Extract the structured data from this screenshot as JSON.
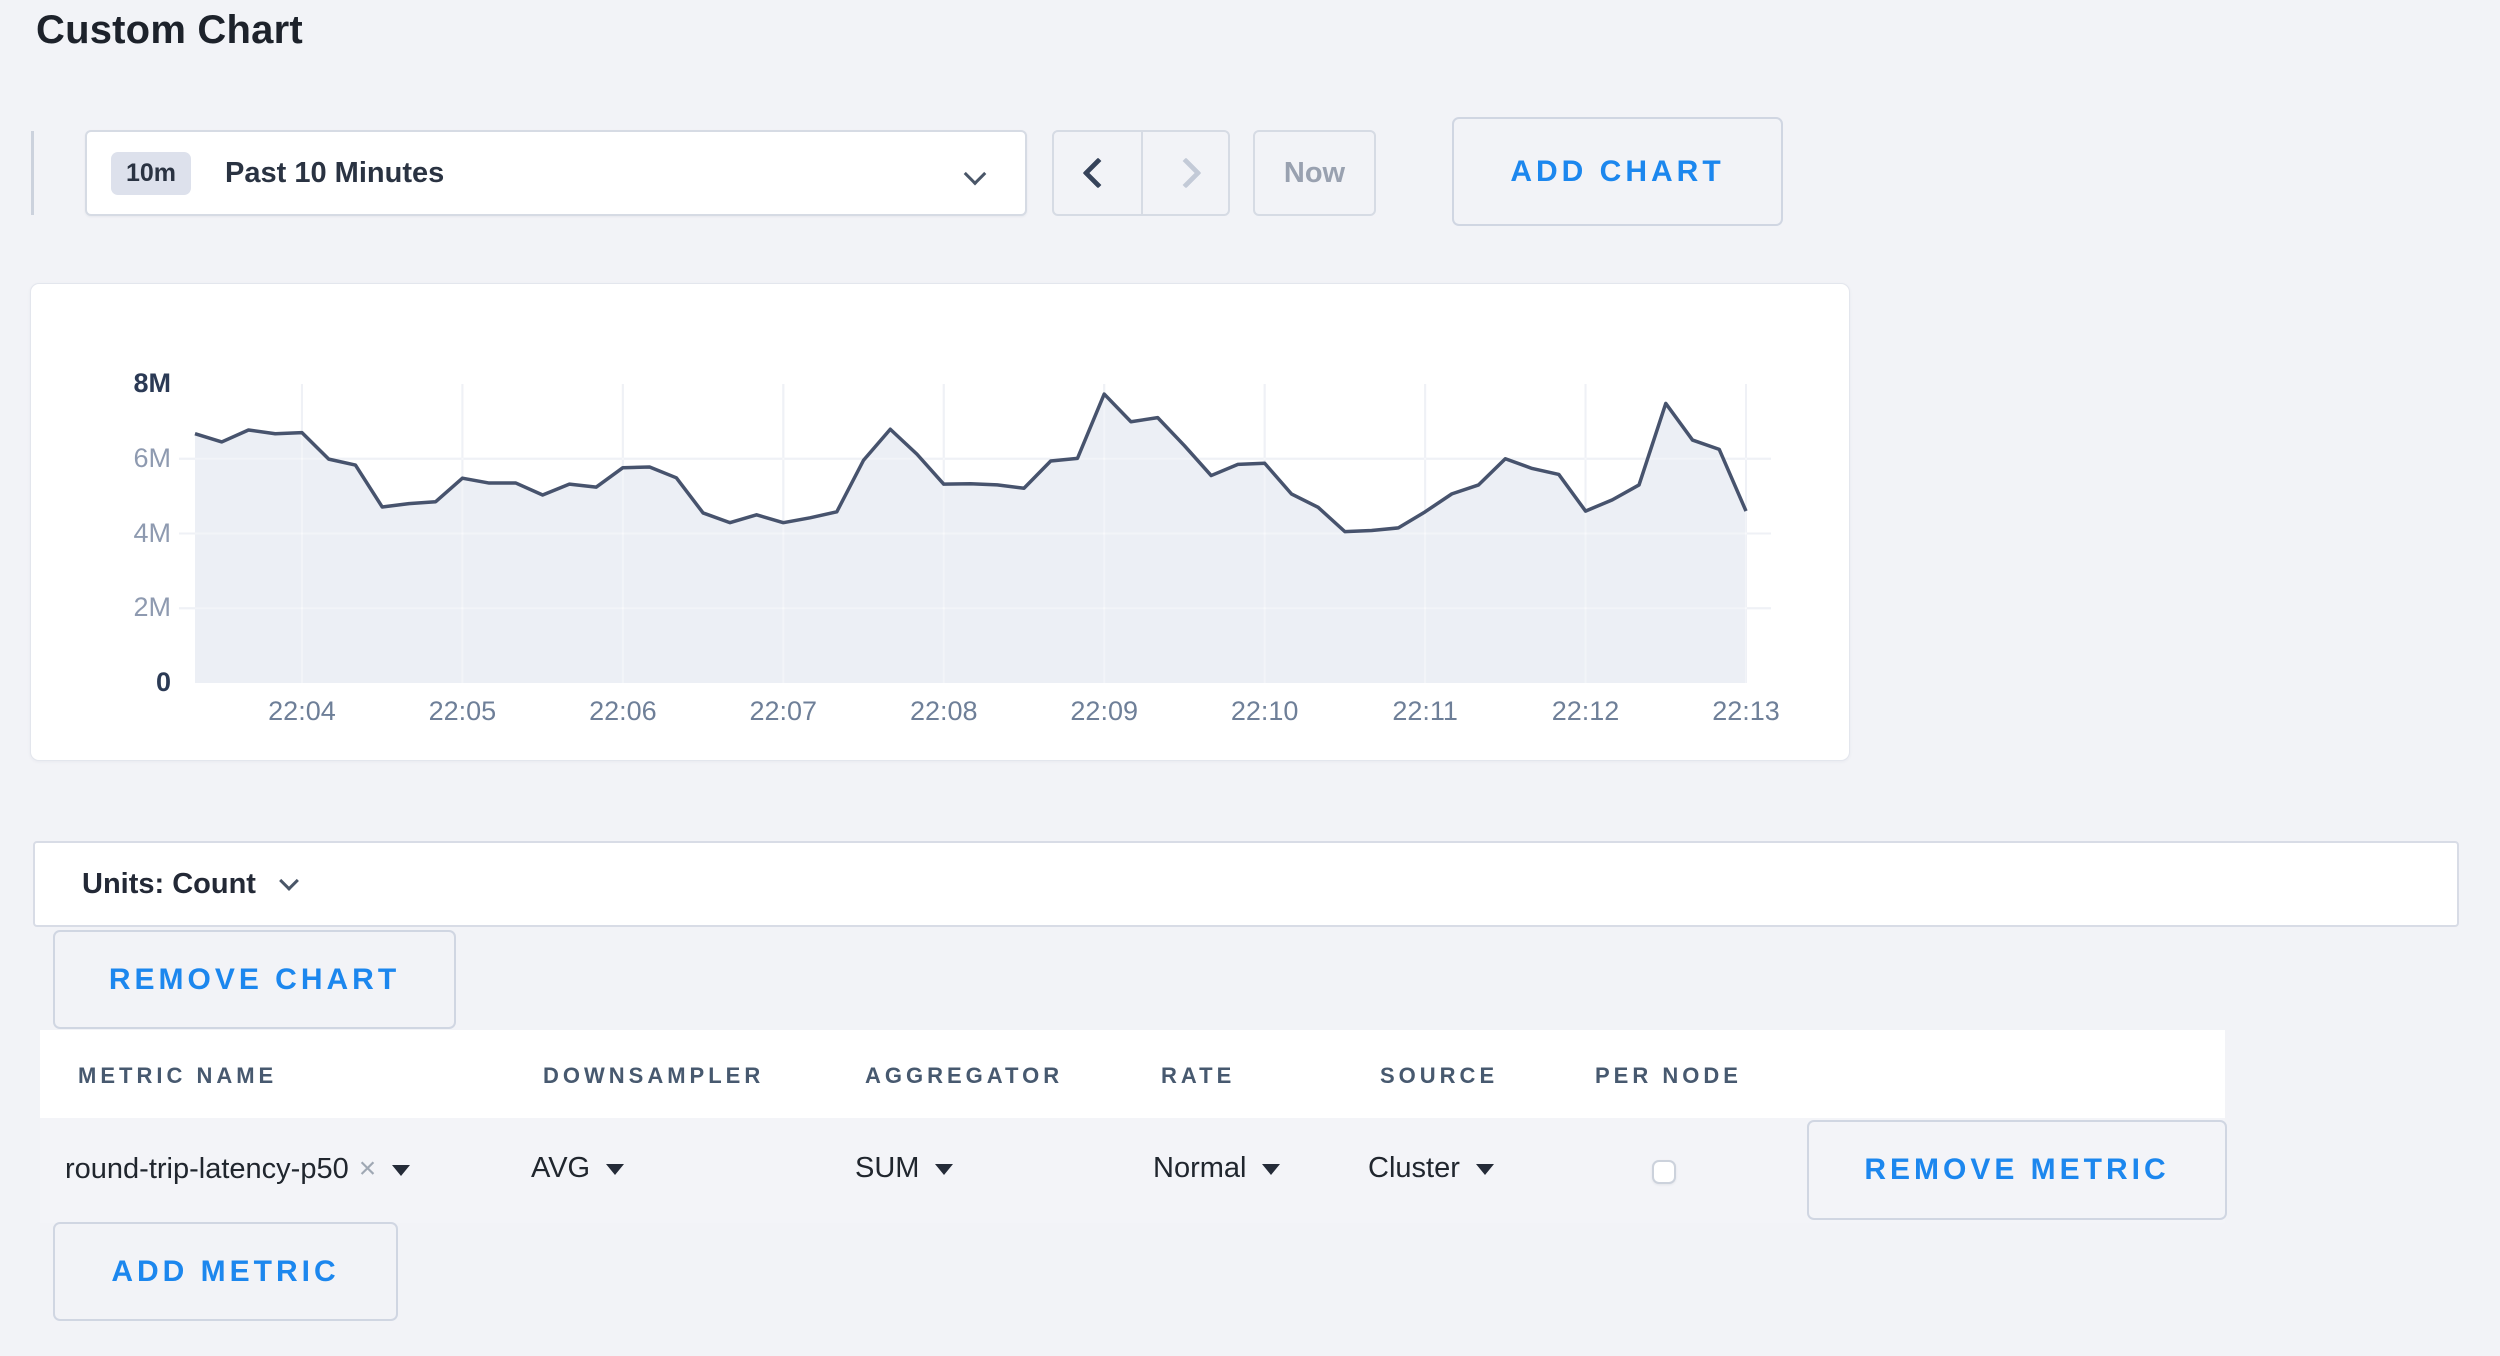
{
  "page": {
    "title": "Custom Chart"
  },
  "toolbar": {
    "time_badge": "10m",
    "time_label": "Past 10 Minutes",
    "now_label": "Now",
    "add_chart_label": "ADD CHART"
  },
  "units_bar": {
    "label": "Units: Count"
  },
  "remove_chart_label": "REMOVE CHART",
  "add_metric_label": "ADD METRIC",
  "table": {
    "columns": [
      "METRIC NAME",
      "DOWNSAMPLER",
      "AGGREGATOR",
      "RATE",
      "SOURCE",
      "PER NODE"
    ],
    "row": {
      "metric_name": "round-trip-latency-p50",
      "remove_tag_icon": "×",
      "downsampler": "AVG",
      "aggregator": "SUM",
      "rate": "Normal",
      "source": "Cluster",
      "per_node_checked": false,
      "remove_metric_label": "REMOVE METRIC"
    }
  },
  "colors": {
    "accent_blue": "#1c87ee",
    "line": "#47536d",
    "fill": "#e9ecf3",
    "grid": "#e2e6ee"
  },
  "chart_data": {
    "type": "area",
    "title": "",
    "xlabel": "",
    "ylabel": "",
    "legend": "none",
    "grid": true,
    "y_max": 8000000,
    "y_tick_values": [
      0,
      2,
      4,
      6,
      8
    ],
    "y_tick_labels": [
      "0",
      "2M",
      "4M",
      "6M",
      "8M"
    ],
    "x_tick_labels": [
      "22:04",
      "22:05",
      "22:06",
      "22:07",
      "22:08",
      "22:09",
      "22:10",
      "22:11",
      "22:12",
      "22:13"
    ],
    "x_start_time": "22:03:20",
    "x_step_seconds": 10,
    "first_tick_point_index": 4,
    "points_per_tick": 6,
    "values_millions": [
      6.67,
      6.45,
      6.77,
      6.67,
      6.7,
      5.99,
      5.83,
      4.71,
      4.8,
      4.85,
      5.48,
      5.35,
      5.35,
      5.03,
      5.32,
      5.24,
      5.76,
      5.78,
      5.49,
      4.55,
      4.29,
      4.5,
      4.29,
      4.42,
      4.58,
      5.96,
      6.79,
      6.12,
      5.32,
      5.33,
      5.3,
      5.21,
      5.94,
      6.01,
      7.73,
      6.99,
      7.1,
      6.35,
      5.55,
      5.85,
      5.88,
      5.06,
      4.7,
      4.05,
      4.08,
      4.15,
      4.58,
      5.06,
      5.3,
      6.0,
      5.74,
      5.58,
      4.6,
      4.9,
      5.3,
      7.48,
      6.5,
      6.25,
      4.6
    ]
  }
}
